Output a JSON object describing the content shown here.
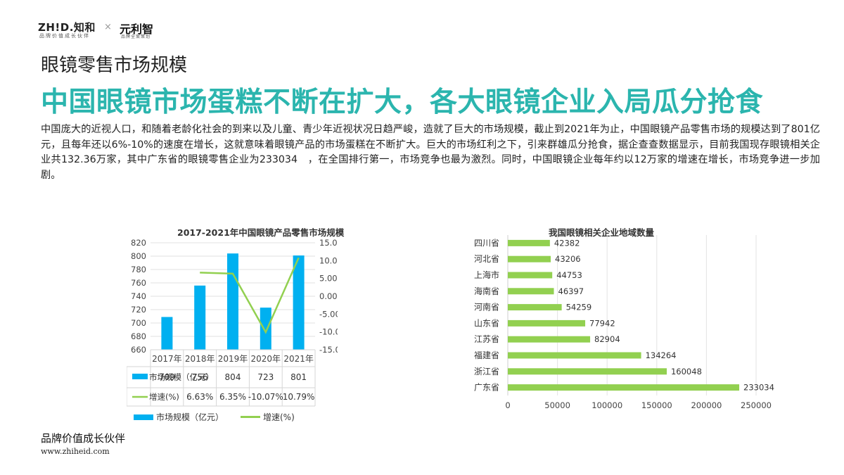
{
  "header": {
    "logo_main": "ZH!D.知和",
    "logo_sub": "品牌价值成长伙伴",
    "logo_x": "×",
    "logo_brand": "元利智",
    "logo_brand_sub": "品牌全案策划"
  },
  "section_title": "眼镜零售市场规模",
  "headline": "中国眼镜市场蛋糕不断在扩大，各大眼镜企业入局瓜分抢食",
  "body_text": "中国庞大的近视人口，和随着老龄化社会的到来以及儿童、青少年近视状况日趋严峻，造就了巨大的市场规模，截止到2021年为止，中国眼镜产品零售市场的规模达到了801亿元，且每年还以6%-10%的速度在增长，这就意味着眼镜产品的市场蛋糕在不断扩大。巨大的市场红利之下，引来群雄瓜分抢食，据企查查数据显示，目前我国现存眼镜相关企业共132.36万家，其中广东省的眼镜零售企业为233034　，在全国排行第一，市场竞争也最为激烈。同时，中国眼镜企业每年约以12万家的增速在增长，市场竞争进一步加剧。",
  "chart_data": [
    {
      "type": "bar",
      "title": "2017-2021年中国眼镜产品零售市场规模",
      "categories": [
        "2017年",
        "2018年",
        "2019年",
        "2020年",
        "2021年"
      ],
      "series": [
        {
          "name": "市场规模（亿元）",
          "type": "bar",
          "axis": "left",
          "values": [
            709,
            756,
            804,
            723,
            801
          ],
          "labels": [
            "709",
            "756",
            "804",
            "723",
            "801"
          ],
          "color": "#00b0f0"
        },
        {
          "name": "增速(%)",
          "type": "line",
          "axis": "right",
          "values": [
            null,
            6.63,
            6.35,
            -10.07,
            10.79
          ],
          "labels": [
            "",
            "6.63%",
            "6.35%",
            "-10.07%",
            "10.79%"
          ],
          "color": "#92d050"
        }
      ],
      "ylim": [
        660,
        820
      ],
      "y_ticks": [
        "660",
        "680",
        "700",
        "720",
        "740",
        "760",
        "780",
        "800",
        "820"
      ],
      "y2lim": [
        -15,
        15
      ],
      "y2_ticks": [
        "-15.00%",
        "-10.00%",
        "-5.00%",
        "0.00%",
        "5.00%",
        "10.00%",
        "15.00%"
      ],
      "data_table": true,
      "legend": "bottom"
    },
    {
      "type": "bar",
      "orientation": "horizontal",
      "title": "我国眼镜相关企业地域数量",
      "categories": [
        "四川省",
        "河北省",
        "上海市",
        "海南省",
        "河南省",
        "山东省",
        "江苏省",
        "福建省",
        "浙江省",
        "广东省"
      ],
      "values": [
        42382,
        43206,
        44753,
        46397,
        54259,
        77942,
        82904,
        134264,
        160048,
        233034
      ],
      "labels": [
        "42382",
        "43206",
        "44753",
        "46397",
        "54259",
        "77942",
        "82904",
        "134264",
        "160048",
        "233034"
      ],
      "xlim": [
        0,
        250000
      ],
      "x_ticks": [
        "0",
        "50000",
        "100000",
        "150000",
        "200000",
        "250000"
      ],
      "color": "#92d050"
    }
  ],
  "footer": {
    "tagline": "品牌价值成长伙伴",
    "url": "www.zhiheid.com"
  }
}
